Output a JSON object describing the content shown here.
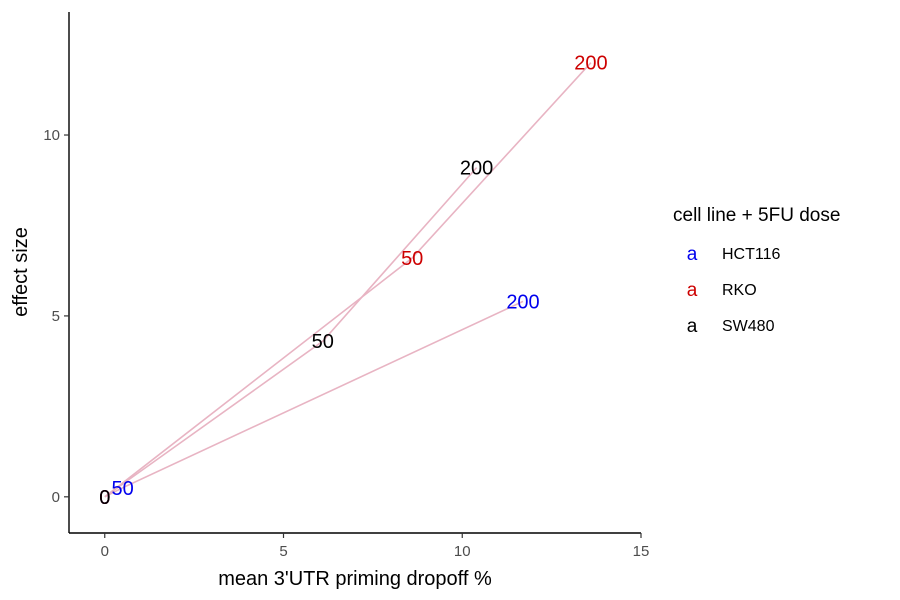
{
  "chart_data": {
    "type": "line",
    "xlabel": "mean 3'UTR priming dropoff %",
    "ylabel": "effect size",
    "xlim": [
      -1,
      15
    ],
    "ylim": [
      -1,
      13.4
    ],
    "x_ticks": [
      0,
      5,
      10,
      15
    ],
    "y_ticks": [
      0,
      5,
      10
    ],
    "grid": false,
    "line_color": "#e8b4c3",
    "legend": {
      "title": "cell line + 5FU dose",
      "placement": "right",
      "key_glyph": "a",
      "entries": [
        {
          "name": "HCT116",
          "color": "#0000ee"
        },
        {
          "name": "RKO",
          "color": "#cd0000"
        },
        {
          "name": "SW480",
          "color": "#000000"
        }
      ]
    },
    "series": [
      {
        "name": "HCT116",
        "color": "#0000ee",
        "points": [
          {
            "x": 0,
            "y": 0,
            "label": "0"
          },
          {
            "x": 0.5,
            "y": 0.25,
            "label": "50"
          },
          {
            "x": 11.7,
            "y": 5.4,
            "label": "200"
          }
        ]
      },
      {
        "name": "RKO",
        "color": "#cd0000",
        "points": [
          {
            "x": 0,
            "y": 0,
            "label": "0"
          },
          {
            "x": 8.6,
            "y": 6.6,
            "label": "50"
          },
          {
            "x": 13.6,
            "y": 12.0,
            "label": "200"
          }
        ]
      },
      {
        "name": "SW480",
        "color": "#000000",
        "points": [
          {
            "x": 0,
            "y": 0,
            "label": "0"
          },
          {
            "x": 6.1,
            "y": 4.3,
            "label": "50"
          },
          {
            "x": 10.4,
            "y": 9.1,
            "label": "200"
          }
        ]
      }
    ]
  }
}
